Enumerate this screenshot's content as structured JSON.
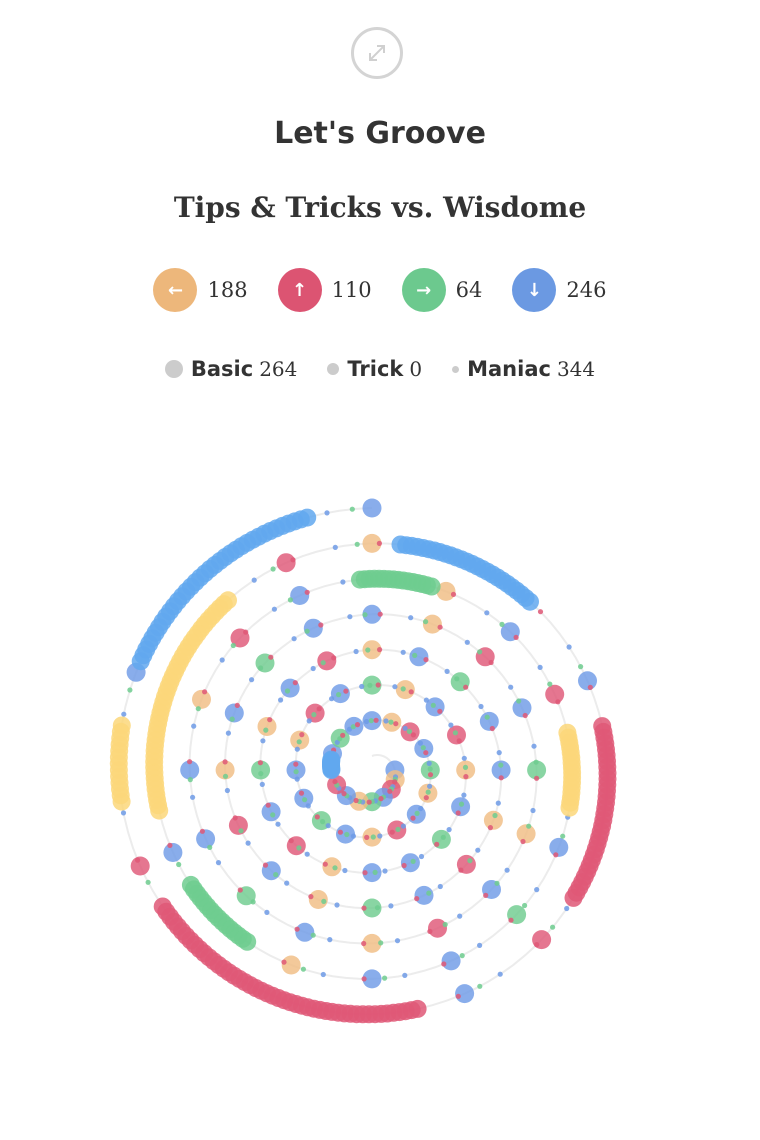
{
  "header": {
    "expand_icon": "expand-diagonal-icon",
    "title": "Let's Groove",
    "subtitle": "Tips & Tricks vs. Wisdome"
  },
  "arrow_stats": [
    {
      "icon": "arrow-left-icon",
      "glyph": "←",
      "count": "188",
      "color": "#edb77b"
    },
    {
      "icon": "arrow-up-icon",
      "glyph": "↑",
      "count": "110",
      "color": "#dc5472"
    },
    {
      "icon": "arrow-right-icon",
      "glyph": "→",
      "count": "64",
      "color": "#6cc98e"
    },
    {
      "icon": "arrow-down-icon",
      "glyph": "↓",
      "count": "246",
      "color": "#6b99e2"
    }
  ],
  "note_types": [
    {
      "name": "Basic",
      "count": "264"
    },
    {
      "name": "Trick",
      "count": "0"
    },
    {
      "name": "Maniac",
      "count": "344"
    }
  ],
  "chart_data": {
    "type": "scatter",
    "layout": "spiral",
    "direction_colors": {
      "left": "#f0bd84",
      "up": "#df5877",
      "right": "#6fcc8f",
      "down": "#6f9be6",
      "hold_left": "#fbd77a",
      "hold_down": "#62a8ef"
    },
    "totals": {
      "left": 188,
      "up": 110,
      "right": 64,
      "down": 246,
      "basic": 264,
      "trick": 0,
      "maniac": 344
    },
    "holds": [
      {
        "dir": "down",
        "from": 0.75,
        "to": 0.79
      },
      {
        "dir": "right",
        "from": 4.99,
        "to": 5.05
      },
      {
        "dir": "left",
        "from": 5.22,
        "to": 5.28
      },
      {
        "dir": "right",
        "from": 5.6,
        "to": 5.66
      },
      {
        "dir": "left",
        "from": 5.72,
        "to": 5.89
      },
      {
        "dir": "down",
        "from": 6.02,
        "to": 6.12
      },
      {
        "dir": "up",
        "from": 6.22,
        "to": 6.34
      },
      {
        "dir": "up",
        "from": 6.47,
        "to": 6.66
      },
      {
        "dir": "left",
        "from": 6.73,
        "to": 6.78
      },
      {
        "dir": "down",
        "from": 6.82,
        "to": 6.96
      }
    ]
  }
}
